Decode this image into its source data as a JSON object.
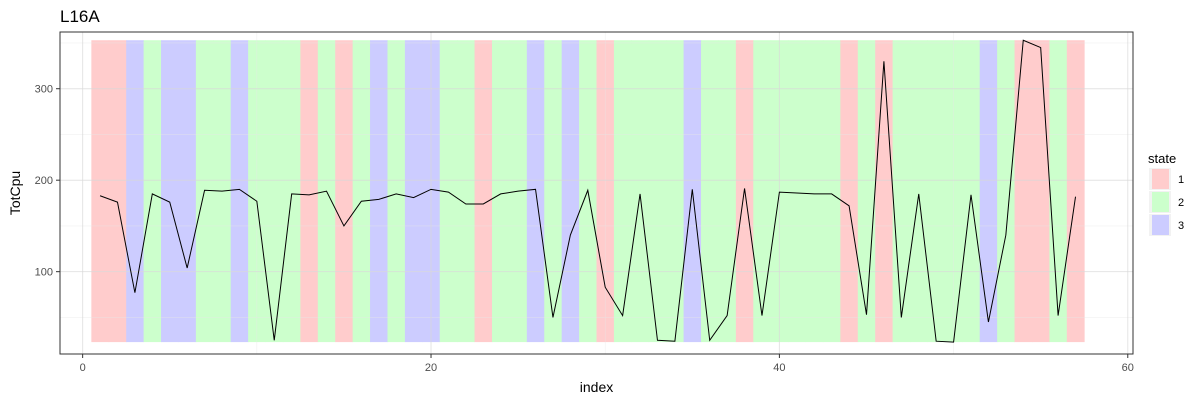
{
  "chart_data": {
    "type": "line",
    "title": "L16A",
    "xlabel": "index",
    "ylabel": "TotCpu",
    "xlim": [
      -1.3,
      60.3
    ],
    "ylim": [
      10,
      362
    ],
    "x_ticks": [
      0,
      20,
      40,
      60
    ],
    "y_ticks": [
      100,
      200,
      300
    ],
    "x_minor_ticks": [
      10,
      30,
      50
    ],
    "y_minor_ticks": [
      50,
      150,
      250,
      350
    ],
    "grid": true,
    "legend": {
      "title": "state",
      "placement": "right",
      "entries": [
        {
          "label": "1",
          "color": "#ffcccc"
        },
        {
          "label": "2",
          "color": "#ccffcc"
        },
        {
          "label": "3",
          "color": "#ccccff"
        }
      ]
    },
    "state_band_range": [
      23,
      353
    ],
    "state_colors": {
      "1": "#ffcccc",
      "2": "#ccffcc",
      "3": "#ccccff"
    },
    "x": [
      1,
      2,
      3,
      4,
      5,
      6,
      7,
      8,
      9,
      10,
      11,
      12,
      13,
      14,
      15,
      16,
      17,
      18,
      19,
      20,
      21,
      22,
      23,
      24,
      25,
      26,
      27,
      28,
      29,
      30,
      31,
      32,
      33,
      34,
      35,
      36,
      37,
      38,
      39,
      40,
      41,
      42,
      43,
      44,
      45,
      46,
      47,
      48,
      49,
      50,
      51,
      52,
      53,
      54,
      55,
      56,
      57
    ],
    "states": [
      1,
      1,
      3,
      2,
      3,
      3,
      2,
      2,
      3,
      2,
      2,
      2,
      1,
      2,
      1,
      2,
      3,
      2,
      3,
      3,
      2,
      2,
      1,
      2,
      2,
      3,
      2,
      3,
      2,
      1,
      2,
      2,
      2,
      2,
      3,
      2,
      2,
      1,
      2,
      2,
      2,
      2,
      2,
      1,
      2,
      1,
      2,
      2,
      2,
      2,
      2,
      3,
      2,
      1,
      1,
      2,
      1
    ],
    "series": [
      {
        "values": [
          183,
          176,
          77,
          185,
          176,
          104,
          189,
          188,
          190,
          177,
          25,
          185,
          184,
          188,
          150,
          177,
          179,
          185,
          181,
          190,
          187,
          174,
          174,
          185,
          188,
          190,
          50,
          140,
          189,
          83,
          52,
          185,
          25,
          24,
          190,
          25,
          52,
          191,
          52,
          187,
          186,
          185,
          185,
          172,
          53,
          330,
          50,
          185,
          24,
          23,
          184,
          45,
          140,
          353,
          345,
          52,
          182
        ],
        "color": "#000000"
      }
    ]
  }
}
